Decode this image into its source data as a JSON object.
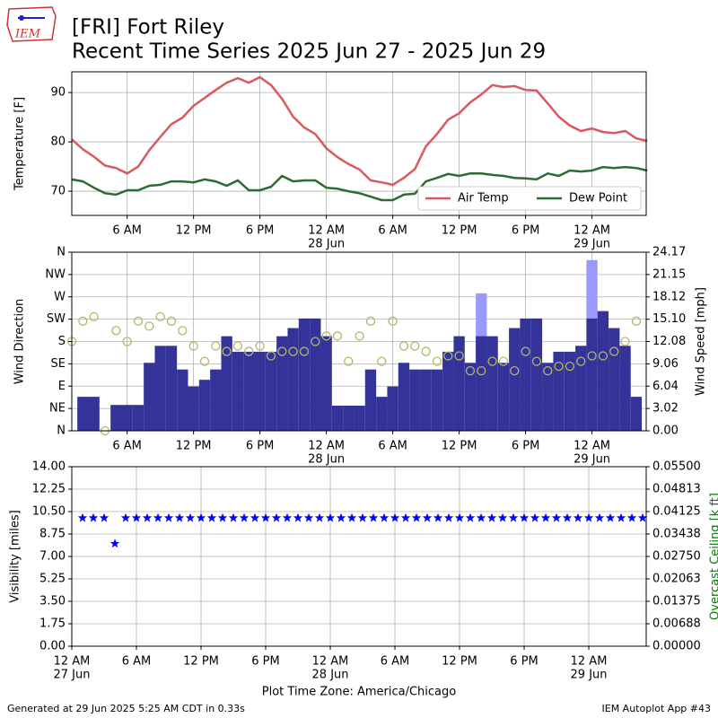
{
  "header": {
    "logo": "IEM",
    "title": "[FRI] Fort Riley",
    "subtitle": "Recent Time Series 2025 Jun 27 - 2025 Jun 29"
  },
  "chart_data": [
    {
      "type": "line",
      "ylabel": "Temperature [F]",
      "xlim": [
        1,
        52.9
      ],
      "ylim": [
        65.1,
        94.2
      ],
      "yticks": [
        70,
        80,
        90
      ],
      "xticks": [
        {
          "value": 6,
          "label": "6 AM"
        },
        {
          "value": 12,
          "label": "12 PM"
        },
        {
          "value": 18,
          "label": "6 PM"
        },
        {
          "value": 24,
          "label": "12 AM",
          "date": "28 Jun"
        },
        {
          "value": 30,
          "label": "6 AM"
        },
        {
          "value": 36,
          "label": "12 PM"
        },
        {
          "value": 42,
          "label": "6 PM"
        },
        {
          "value": 48,
          "label": "12 AM",
          "date": "29 Jun"
        }
      ],
      "grid": true,
      "legend": "lower right",
      "x": [
        1,
        2,
        3,
        4,
        5,
        6,
        7,
        8,
        9,
        10,
        11,
        12,
        13,
        14,
        15,
        16,
        17,
        18,
        19,
        20,
        21,
        22,
        23,
        24,
        25,
        26,
        27,
        28,
        29,
        30,
        31,
        32,
        33,
        34,
        35,
        36,
        37,
        38,
        39,
        40,
        41,
        42,
        43,
        44,
        45,
        46,
        47,
        48,
        49,
        50,
        51,
        52,
        53
      ],
      "series": [
        {
          "name": "Air Temp",
          "color": "#d9595f",
          "values": [
            80.5,
            78.5,
            77,
            75.2,
            74.7,
            73.6,
            75,
            78.3,
            81,
            83.6,
            84.9,
            87.3,
            88.9,
            90.5,
            92,
            92.9,
            92,
            93.1,
            91.5,
            88.7,
            85.1,
            82.9,
            81.6,
            78.7,
            76.9,
            75.5,
            74.4,
            72.2,
            71.8,
            71.3,
            72.7,
            74.5,
            79.1,
            81.6,
            84.5,
            85.8,
            88,
            89.6,
            91.5,
            91.1,
            91.3,
            90.5,
            90.4,
            87.8,
            85.1,
            83.3,
            82.2,
            82.7,
            82,
            81.8,
            82.2,
            80.7,
            80.2
          ]
        },
        {
          "name": "Dew Point",
          "color": "#2e6b30",
          "values": [
            72.4,
            72,
            70.7,
            69.6,
            69.3,
            70.2,
            70.2,
            71.1,
            71.3,
            72,
            72,
            71.8,
            72.4,
            72,
            71.1,
            72.2,
            70.2,
            70.2,
            70.9,
            73.1,
            72,
            72.2,
            72.2,
            70.7,
            70.5,
            70,
            69.6,
            68.9,
            68.2,
            68.2,
            69.3,
            69.5,
            72,
            72.7,
            73.5,
            73.1,
            73.6,
            73.6,
            73.3,
            73.1,
            72.7,
            72.6,
            72.4,
            73.6,
            73.1,
            74.2,
            74,
            74.2,
            74.9,
            74.7,
            74.9,
            74.7,
            74.2
          ]
        }
      ]
    },
    {
      "type": "combo",
      "ylabel": "Wind Direction",
      "y2label": "Wind Speed [mph]",
      "xlim": [
        1,
        52.9
      ],
      "ylim": [
        0,
        360
      ],
      "yticks": [
        {
          "value": 0,
          "label": "N"
        },
        {
          "value": 45,
          "label": "NE"
        },
        {
          "value": 90,
          "label": "E"
        },
        {
          "value": 135,
          "label": "SE"
        },
        {
          "value": 180,
          "label": "S"
        },
        {
          "value": 225,
          "label": "SW"
        },
        {
          "value": 270,
          "label": "W"
        },
        {
          "value": 315,
          "label": "NW"
        },
        {
          "value": 360,
          "label": "N"
        }
      ],
      "y2lim": [
        0,
        24.17
      ],
      "y2ticks": [
        {
          "value": 0,
          "label": "0.00"
        },
        3.02,
        6.04,
        9.06,
        12.08,
        {
          "value": 15.1,
          "label": "15.10"
        },
        18.12,
        21.15,
        24.17
      ],
      "xticks": [
        {
          "value": 6,
          "label": "6 AM"
        },
        {
          "value": 12,
          "label": "12 PM"
        },
        {
          "value": 18,
          "label": "6 PM"
        },
        {
          "value": 24,
          "label": "12 AM",
          "date": "28 Jun"
        },
        {
          "value": 30,
          "label": "6 AM"
        },
        {
          "value": 36,
          "label": "12 PM"
        },
        {
          "value": 42,
          "label": "6 PM"
        },
        {
          "value": 48,
          "label": "12 AM",
          "date": "29 Jun"
        }
      ],
      "grid": true,
      "series": [
        {
          "type": "bar",
          "axis": "y2",
          "color": "#9999ff",
          "x": [
            2,
            3,
            4,
            5,
            6,
            7,
            8,
            9,
            10,
            11,
            12,
            13,
            14,
            15,
            16,
            17,
            18,
            19,
            20,
            21,
            22,
            23,
            24,
            25,
            26,
            27,
            28,
            29,
            30,
            31,
            32,
            33,
            34,
            35,
            36,
            37,
            38,
            39,
            40,
            41,
            42,
            43,
            44,
            45,
            46,
            47,
            48,
            49,
            50,
            51,
            52
          ],
          "values": [
            null,
            null,
            null,
            null,
            null,
            null,
            null,
            null,
            null,
            null,
            null,
            null,
            null,
            null,
            null,
            null,
            null,
            null,
            null,
            null,
            null,
            null,
            null,
            null,
            null,
            null,
            null,
            null,
            null,
            null,
            null,
            null,
            null,
            null,
            null,
            null,
            18.6,
            null,
            null,
            null,
            null,
            null,
            null,
            null,
            null,
            null,
            23.1,
            null,
            null,
            null,
            null
          ]
        },
        {
          "type": "bar",
          "axis": "y2",
          "color": "#333399",
          "x": [
            2,
            3,
            4,
            5,
            6,
            7,
            8,
            9,
            10,
            11,
            12,
            13,
            14,
            15,
            16,
            17,
            18,
            19,
            20,
            21,
            22,
            23,
            24,
            25,
            26,
            27,
            28,
            29,
            30,
            31,
            32,
            33,
            34,
            35,
            36,
            37,
            38,
            39,
            40,
            41,
            42,
            43,
            44,
            45,
            46,
            47,
            48,
            49,
            50,
            51,
            52
          ],
          "values": [
            4.6,
            4.6,
            0,
            3.5,
            3.5,
            3.5,
            9.2,
            11.5,
            11.5,
            8.3,
            6,
            6.9,
            8.3,
            12.8,
            10.7,
            10.7,
            10.7,
            10.7,
            12.8,
            13.9,
            15.2,
            15.2,
            12.8,
            3.4,
            3.4,
            3.4,
            8.3,
            4.6,
            6,
            9.2,
            8.3,
            8.3,
            8.3,
            10.7,
            12.8,
            9.2,
            12.8,
            12.8,
            9.2,
            13.9,
            15.2,
            15.2,
            9.2,
            10.7,
            10.7,
            11.5,
            15.2,
            16.2,
            13.9,
            11.5,
            4.6
          ]
        },
        {
          "type": "scatter",
          "color": "#b5b56a",
          "x": [
            1,
            2,
            3,
            4,
            5,
            6,
            7,
            8,
            9,
            10,
            11,
            12,
            13,
            14,
            15,
            16,
            17,
            18,
            19,
            20,
            21,
            22,
            23,
            24,
            25,
            26,
            27,
            28,
            29,
            30,
            31,
            32,
            33,
            34,
            35,
            36,
            37,
            38,
            39,
            40,
            41,
            42,
            43,
            44,
            45,
            46,
            47,
            48,
            49,
            50,
            51,
            52
          ],
          "values": [
            180,
            221,
            230,
            0,
            202,
            180,
            221,
            211,
            230,
            221,
            202,
            171,
            140,
            171,
            160,
            171,
            160,
            171,
            151,
            160,
            160,
            160,
            180,
            191,
            191,
            140,
            191,
            221,
            140,
            221,
            171,
            171,
            160,
            140,
            151,
            151,
            121,
            121,
            140,
            140,
            121,
            160,
            140,
            121,
            130,
            130,
            140,
            151,
            151,
            160,
            180,
            221
          ]
        }
      ]
    },
    {
      "type": "star",
      "ylabel": "Visibility [miles]",
      "y2label": "Overcast Ceiling [k ft]",
      "y2color": "#008000",
      "xlabel": "Plot Time Zone: America/Chicago",
      "xlim": [
        0,
        53.33
      ],
      "ylim": [
        0,
        14
      ],
      "yticks": [
        {
          "value": 0,
          "label": "0.00"
        },
        1.75,
        {
          "value": 3.5,
          "label": "3.50"
        },
        5.25,
        {
          "value": 7,
          "label": "7.00"
        },
        8.75,
        {
          "value": 10.5,
          "label": "10.50"
        },
        12.25,
        {
          "value": 14,
          "label": "14.00"
        }
      ],
      "y2lim": [
        0,
        0.055
      ],
      "y2ticks": [
        {
          "value": 0,
          "label": "0.00000"
        },
        {
          "value": 0.006875,
          "label": "0.00688"
        },
        {
          "value": 0.01375,
          "label": "0.01375"
        },
        {
          "value": 0.020625,
          "label": "0.02063"
        },
        {
          "value": 0.0275,
          "label": "0.02750"
        },
        {
          "value": 0.034375,
          "label": "0.03438"
        },
        {
          "value": 0.04125,
          "label": "0.04125"
        },
        {
          "value": 0.048125,
          "label": "0.04813"
        },
        {
          "value": 0.055,
          "label": "0.05500"
        }
      ],
      "xticks": [
        {
          "value": 0,
          "label": "12 AM",
          "date": "27 Jun"
        },
        {
          "value": 6,
          "label": "6 AM"
        },
        {
          "value": 12,
          "label": "12 PM"
        },
        {
          "value": 18,
          "label": "6 PM"
        },
        {
          "value": 24,
          "label": "12 AM",
          "date": "28 Jun"
        },
        {
          "value": 30,
          "label": "6 AM"
        },
        {
          "value": 36,
          "label": "12 PM"
        },
        {
          "value": 42,
          "label": "6 PM"
        },
        {
          "value": 48,
          "label": "12 AM",
          "date": "29 Jun"
        }
      ],
      "grid": true,
      "series": [
        {
          "color": "#0000ff",
          "x": [
            1,
            2,
            3,
            4,
            5,
            6,
            7,
            8,
            9,
            10,
            11,
            12,
            13,
            14,
            15,
            16,
            17,
            18,
            19,
            20,
            21,
            22,
            23,
            24,
            25,
            26,
            27,
            28,
            29,
            30,
            31,
            32,
            33,
            34,
            35,
            36,
            37,
            38,
            39,
            40,
            41,
            42,
            43,
            44,
            45,
            46,
            47,
            48,
            49,
            50,
            51,
            52,
            53
          ],
          "values": [
            10,
            10,
            10,
            8,
            10,
            10,
            10,
            10,
            10,
            10,
            10,
            10,
            10,
            10,
            10,
            10,
            10,
            10,
            10,
            10,
            10,
            10,
            10,
            10,
            10,
            10,
            10,
            10,
            10,
            10,
            10,
            10,
            10,
            10,
            10,
            10,
            10,
            10,
            10,
            10,
            10,
            10,
            10,
            10,
            10,
            10,
            10,
            10,
            10,
            10,
            10,
            10,
            10
          ]
        }
      ]
    }
  ],
  "footer": {
    "left": "Generated at 29 Jun 2025 5:25 AM CDT in 0.33s",
    "right": "IEM Autoplot App #43"
  }
}
